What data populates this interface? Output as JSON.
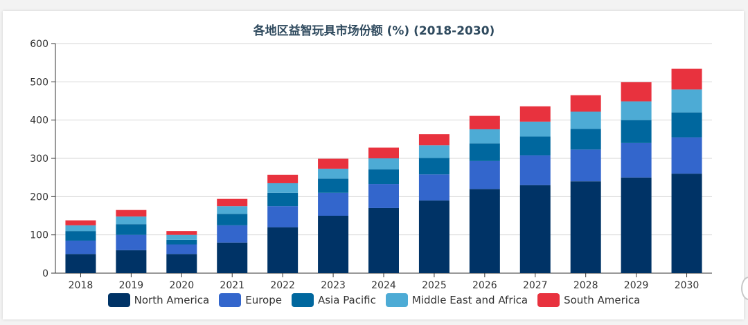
{
  "chart_data": {
    "type": "bar",
    "stacked": true,
    "title": "各地区益智玩具市场份额 (%) (2018-2030)",
    "xlabel": "",
    "ylabel": "",
    "ylim": [
      0,
      600
    ],
    "yticks": [
      0,
      100,
      200,
      300,
      400,
      500,
      600
    ],
    "grid": true,
    "legend_position": "bottom",
    "categories": [
      "2018",
      "2019",
      "2020",
      "2021",
      "2022",
      "2023",
      "2024",
      "2025",
      "2026",
      "2027",
      "2028",
      "2029",
      "2030"
    ],
    "series": [
      {
        "name": "North America",
        "color": "#003366",
        "values": [
          50,
          60,
          50,
          80,
          120,
          150,
          170,
          190,
          220,
          230,
          240,
          250,
          260
        ]
      },
      {
        "name": "Europe",
        "color": "#3366cc",
        "values": [
          35,
          40,
          25,
          45,
          55,
          60,
          63,
          68,
          73,
          78,
          83,
          90,
          95
        ]
      },
      {
        "name": "Asia Pacific",
        "color": "#00679e",
        "values": [
          25,
          28,
          12,
          30,
          35,
          37,
          38,
          43,
          46,
          49,
          54,
          60,
          65
        ]
      },
      {
        "name": "Middle East and Africa",
        "color": "#4dabd5",
        "values": [
          15,
          20,
          13,
          20,
          25,
          26,
          29,
          33,
          37,
          39,
          45,
          49,
          60
        ]
      },
      {
        "name": "South America",
        "color": "#e8323e",
        "values": [
          13,
          17,
          10,
          19,
          22,
          26,
          28,
          29,
          35,
          40,
          43,
          50,
          54
        ]
      }
    ]
  }
}
